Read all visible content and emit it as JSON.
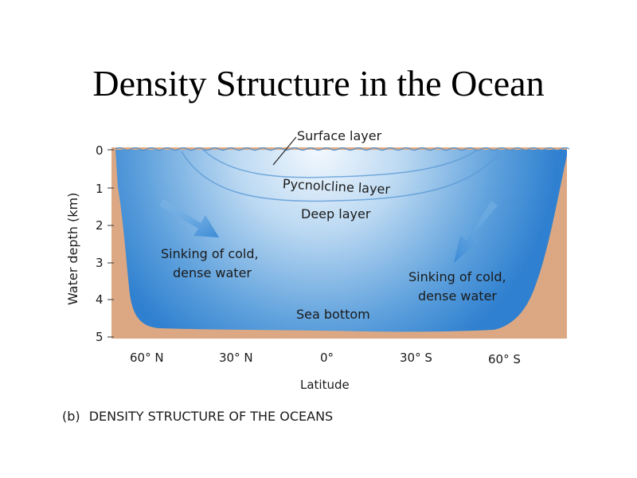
{
  "title": "Density Structure in the Ocean",
  "diagram": {
    "y_axis_label": "Water depth (km)",
    "depth_ticks": [
      "0",
      "1",
      "2",
      "3",
      "4",
      "5"
    ],
    "latitude_ticks": [
      "60° N",
      "30° N",
      "0°",
      "30° S",
      "60° S"
    ],
    "x_axis_label": "Latitude",
    "labels": {
      "surface": "Surface layer",
      "pycnocline": "Pycnolcline layer",
      "deep": "Deep layer",
      "sink_left_1": "Sinking of cold,",
      "sink_left_2": "dense water",
      "sink_right_1": "Sinking of cold,",
      "sink_right_2": "dense water",
      "bottom": "Sea bottom"
    },
    "caption_prefix": "(b)",
    "caption": "DENSITY STRUCTURE OF THE OCEANS"
  },
  "colors": {
    "water_deep": "#2f80d0",
    "water_light": "#eef6fd",
    "seafloor": "#dca883",
    "arrow": "#3a8ad6"
  }
}
